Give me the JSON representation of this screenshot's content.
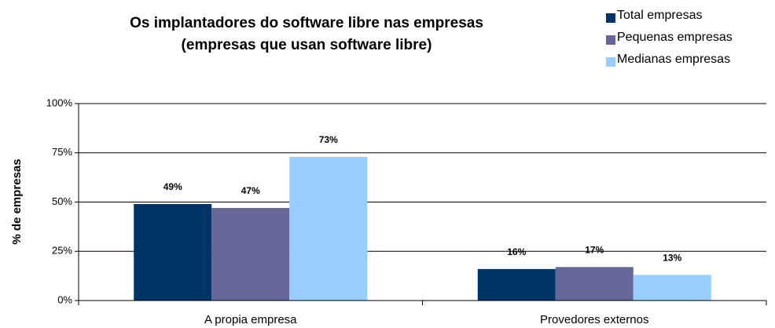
{
  "chart_data": {
    "type": "bar",
    "title": "Os implantadores do software libre nas empresas",
    "subtitle": "(empresas que usan software libre)",
    "y_label": "% de empresas",
    "categories": [
      "A propia empresa",
      "Provedores externos"
    ],
    "series": [
      {
        "name": "Total empresas",
        "color": "#003366",
        "values": [
          49,
          16
        ],
        "value_labels": [
          "49%",
          "16%"
        ]
      },
      {
        "name": "Pequenas empresas",
        "color": "#666699",
        "values": [
          47,
          17
        ],
        "value_labels": [
          "47%",
          "17%"
        ]
      },
      {
        "name": "Medianas empresas",
        "color": "#99ccff",
        "values": [
          73,
          13
        ],
        "value_labels": [
          "73%",
          "13%"
        ]
      }
    ],
    "ylim": [
      0,
      100
    ],
    "yticks": [
      {
        "value": 0,
        "label": "0%"
      },
      {
        "value": 25,
        "label": "25%"
      },
      {
        "value": 50,
        "label": "50%"
      },
      {
        "value": 75,
        "label": "75%"
      },
      {
        "value": 100,
        "label": "100%"
      }
    ],
    "grid": true,
    "legend": "top-right"
  }
}
